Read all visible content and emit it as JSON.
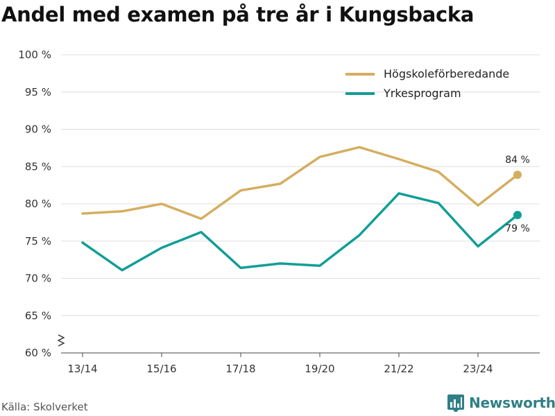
{
  "title": "Andel med examen på tre år i Kungsbacka",
  "source": "Källa: Skolverket",
  "brand": "Newsworthy",
  "colors": {
    "series1": "#d4ae5f",
    "series2": "#119e96",
    "grid": "#dddddd",
    "brand": "#2f7f86"
  },
  "chart_data": {
    "type": "line",
    "title": "Andel med examen på tre år i Kungsbacka",
    "xlabel": "",
    "ylabel": "",
    "ylim": [
      60,
      100
    ],
    "y_ticks": [
      60,
      65,
      70,
      75,
      80,
      85,
      90,
      95,
      100
    ],
    "y_tick_labels": [
      "60 %",
      "65 %",
      "70 %",
      "75 %",
      "80 %",
      "85 %",
      "90 %",
      "95 %",
      "100 %"
    ],
    "categories": [
      "13/14",
      "14/15",
      "15/16",
      "16/17",
      "17/18",
      "18/19",
      "19/20",
      "20/21",
      "21/22",
      "22/23",
      "23/24",
      "24/25"
    ],
    "x_tick_labels": [
      "13/14",
      "15/16",
      "17/18",
      "19/20",
      "21/22",
      "23/24"
    ],
    "x_tick_indices": [
      0,
      2,
      4,
      6,
      8,
      10
    ],
    "axis_break": true,
    "legend_position": "top-right",
    "series": [
      {
        "name": "Högskoleförberedande",
        "color": "#d4ae5f",
        "values": [
          78.7,
          79.0,
          80.0,
          78.0,
          81.8,
          82.7,
          86.3,
          87.6,
          86.0,
          84.3,
          79.8,
          83.9
        ],
        "end_label": "84 %",
        "end_label_pos": "above"
      },
      {
        "name": "Yrkesprogram",
        "color": "#119e96",
        "values": [
          74.8,
          71.1,
          74.1,
          76.2,
          71.4,
          72.0,
          71.7,
          75.8,
          81.4,
          80.1,
          74.3,
          78.5
        ],
        "end_label": "79 %",
        "end_label_pos": "below"
      }
    ]
  }
}
